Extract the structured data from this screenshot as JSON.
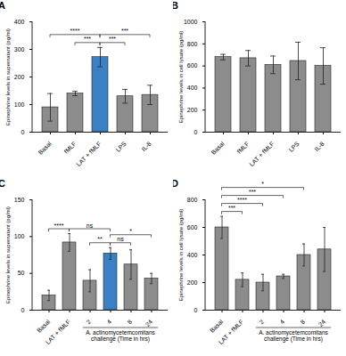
{
  "chart_data": [
    {
      "type": "bar",
      "label": "A",
      "ylabel": "Epinephrine levels in supernatant (pg/ml)",
      "categories": [
        "Basal",
        "fMLF",
        "LAT + fMLF",
        "LPS",
        "IL-8"
      ],
      "values": [
        90,
        140,
        272,
        130,
        135
      ],
      "errors": [
        50,
        8,
        35,
        25,
        35
      ],
      "colors": [
        "#8c8c8c",
        "#8c8c8c",
        "#3b7fc4",
        "#8c8c8c",
        "#8c8c8c"
      ],
      "ylim": [
        0,
        400
      ],
      "yticks": [
        0,
        100,
        200,
        300,
        400
      ],
      "comparisons": [
        {
          "from": "fMLF",
          "to": "LAT + fMLF",
          "label": "***"
        },
        {
          "from": "LAT + fMLF",
          "to": "LPS",
          "label": "***"
        },
        {
          "from": "Basal",
          "to": "LAT + fMLF",
          "label": "****"
        },
        {
          "from": "LAT + fMLF",
          "to": "IL-8",
          "label": "***"
        }
      ]
    },
    {
      "type": "bar",
      "label": "B",
      "ylabel": "Epinephrine levels in cell lysate (pg/ml)",
      "categories": [
        "Basal",
        "fMLF",
        "LAT + fMLF",
        "LPS",
        "IL-8"
      ],
      "values": [
        680,
        670,
        610,
        645,
        600
      ],
      "errors": [
        25,
        70,
        80,
        170,
        165
      ],
      "colors": [
        "#8c8c8c",
        "#8c8c8c",
        "#8c8c8c",
        "#8c8c8c",
        "#8c8c8c"
      ],
      "ylim": [
        0,
        1000
      ],
      "yticks": [
        0,
        200,
        400,
        600,
        800,
        1000
      ],
      "comparisons": []
    },
    {
      "type": "bar",
      "label": "C",
      "ylabel": "Epinephrine levels in supernatant (pg/ml)",
      "categories": [
        "Basal",
        "LAT + fMLF",
        "2",
        "4",
        "8",
        "24"
      ],
      "values": [
        20,
        92,
        40,
        77,
        62,
        43
      ],
      "errors": [
        7,
        12,
        15,
        8,
        20,
        7
      ],
      "colors": [
        "#8c8c8c",
        "#8c8c8c",
        "#8c8c8c",
        "#3b7fc4",
        "#8c8c8c",
        "#8c8c8c"
      ],
      "ylim": [
        0,
        150
      ],
      "yticks": [
        0,
        50,
        100,
        150
      ],
      "category_group": {
        "label": "A. actinomycetemcomitans challenge (Time in hrs)",
        "categories": [
          "2",
          "4",
          "8",
          "24"
        ]
      },
      "comparisons": [
        {
          "from": "2",
          "to": "4",
          "label": "**"
        },
        {
          "from": "4",
          "to": "8",
          "label": "ns"
        },
        {
          "from": "Basal",
          "to": "LAT + fMLF",
          "label": "****"
        },
        {
          "from": "LAT + fMLF",
          "to": "4",
          "label": "ns"
        },
        {
          "from": "4",
          "to": "24",
          "label": "*"
        }
      ]
    },
    {
      "type": "bar",
      "label": "D",
      "ylabel": "Epinephrine levels in cell lysate (pg/ml)",
      "categories": [
        "Basal",
        "LAT + fMLF",
        "2",
        "4",
        "8",
        "24"
      ],
      "values": [
        600,
        220,
        200,
        245,
        400,
        440
      ],
      "errors": [
        80,
        50,
        60,
        15,
        80,
        160
      ],
      "colors": [
        "#8c8c8c",
        "#8c8c8c",
        "#8c8c8c",
        "#8c8c8c",
        "#8c8c8c",
        "#8c8c8c"
      ],
      "ylim": [
        0,
        800
      ],
      "yticks": [
        0,
        200,
        400,
        600,
        800
      ],
      "category_group": {
        "label": "A. actinomycetemcomitans challenge (Time in hrs)",
        "categories": [
          "2",
          "4",
          "8",
          "24"
        ]
      },
      "comparisons": [
        {
          "from": "Basal",
          "to": "LAT + fMLF",
          "label": "***"
        },
        {
          "from": "Basal",
          "to": "2",
          "label": "****"
        },
        {
          "from": "Basal",
          "to": "4",
          "label": "***"
        },
        {
          "from": "Basal",
          "to": "8",
          "label": "*"
        }
      ]
    }
  ]
}
